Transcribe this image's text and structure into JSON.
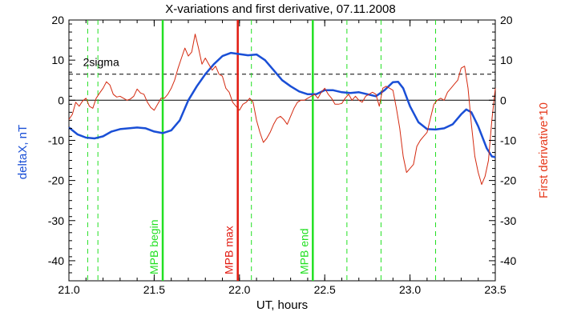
{
  "chart_data": {
    "type": "line",
    "title": "X-variations and first derivative, 07.11.2008",
    "xlabel": "UT, hours",
    "ylabel_left": "deltaX, nT",
    "ylabel_right": "First derivative*10",
    "xlim": [
      21.0,
      23.5
    ],
    "ylim": [
      -45,
      20
    ],
    "x_ticks": [
      21.0,
      21.5,
      22.0,
      22.5,
      23.0,
      23.5
    ],
    "x_tick_labels": [
      "21.0",
      "21.5",
      "22.0",
      "22.5",
      "23.0",
      "23.5"
    ],
    "y_ticks": [
      20,
      10,
      0,
      -10,
      -20,
      -30,
      -40
    ],
    "y_tick_labels": [
      "20",
      "10",
      "0",
      "-10",
      "-20",
      "-30",
      "-40"
    ],
    "colors": {
      "deltaX": "#1a4fd6",
      "derivative": "#d42a10",
      "green_marker": "#22e022",
      "red_marker": "#e21a10",
      "right_label": "#e63b1e",
      "left_label": "#1a4fd6"
    },
    "reference_lines": [
      {
        "y": 6.5,
        "style": "dashed",
        "label": "2sigma"
      },
      {
        "y": 0,
        "style": "solid",
        "label": ""
      }
    ],
    "solid_markers": [
      {
        "x": 21.55,
        "label": "MPB begin",
        "color": "green"
      },
      {
        "x": 21.99,
        "label": "MPB max",
        "color": "red"
      },
      {
        "x": 22.43,
        "label": "MPB end",
        "color": "green"
      }
    ],
    "dashed_markers": [
      21.11,
      21.17,
      22.07,
      22.63,
      22.83,
      23.15
    ],
    "series": [
      {
        "name": "deltaX, nT",
        "color_key": "deltaX",
        "points": [
          [
            21.0,
            -6.8
          ],
          [
            21.05,
            -8.5
          ],
          [
            21.1,
            -9.3
          ],
          [
            21.15,
            -9.5
          ],
          [
            21.2,
            -9.0
          ],
          [
            21.25,
            -7.8
          ],
          [
            21.3,
            -7.2
          ],
          [
            21.35,
            -7.0
          ],
          [
            21.4,
            -6.8
          ],
          [
            21.45,
            -7.0
          ],
          [
            21.5,
            -7.8
          ],
          [
            21.55,
            -8.2
          ],
          [
            21.6,
            -7.5
          ],
          [
            21.65,
            -5.0
          ],
          [
            21.7,
            0.0
          ],
          [
            21.75,
            3.5
          ],
          [
            21.8,
            6.5
          ],
          [
            21.85,
            9.0
          ],
          [
            21.9,
            11.0
          ],
          [
            21.95,
            11.8
          ],
          [
            22.0,
            11.5
          ],
          [
            22.05,
            11.2
          ],
          [
            22.1,
            11.4
          ],
          [
            22.15,
            10.0
          ],
          [
            22.2,
            7.5
          ],
          [
            22.25,
            5.0
          ],
          [
            22.3,
            3.5
          ],
          [
            22.35,
            2.2
          ],
          [
            22.4,
            1.5
          ],
          [
            22.45,
            1.5
          ],
          [
            22.5,
            2.5
          ],
          [
            22.55,
            2.5
          ],
          [
            22.6,
            2.0
          ],
          [
            22.65,
            1.8
          ],
          [
            22.7,
            2.0
          ],
          [
            22.75,
            1.5
          ],
          [
            22.8,
            1.0
          ],
          [
            22.85,
            2.5
          ],
          [
            22.9,
            4.5
          ],
          [
            22.93,
            4.6
          ],
          [
            22.96,
            3.0
          ],
          [
            23.0,
            -1.5
          ],
          [
            23.05,
            -5.5
          ],
          [
            23.1,
            -7.2
          ],
          [
            23.15,
            -7.3
          ],
          [
            23.2,
            -7.0
          ],
          [
            23.25,
            -6.0
          ],
          [
            23.3,
            -3.5
          ],
          [
            23.33,
            -2.3
          ],
          [
            23.36,
            -3.0
          ],
          [
            23.4,
            -6.5
          ],
          [
            23.45,
            -12.0
          ],
          [
            23.48,
            -14.0
          ],
          [
            23.5,
            -14.2
          ]
        ]
      },
      {
        "name": "First derivative*10",
        "color_key": "derivative",
        "points": [
          [
            21.0,
            -4.8
          ],
          [
            21.02,
            -3.5
          ],
          [
            21.04,
            -0.5
          ],
          [
            21.06,
            -1.5
          ],
          [
            21.08,
            -0.2
          ],
          [
            21.1,
            0.5
          ],
          [
            21.12,
            -1.5
          ],
          [
            21.14,
            -2.0
          ],
          [
            21.16,
            0.5
          ],
          [
            21.18,
            1.8
          ],
          [
            21.2,
            3.0
          ],
          [
            21.22,
            4.6
          ],
          [
            21.24,
            3.8
          ],
          [
            21.26,
            1.5
          ],
          [
            21.28,
            0.8
          ],
          [
            21.3,
            1.0
          ],
          [
            21.32,
            0.5
          ],
          [
            21.34,
            0.0
          ],
          [
            21.36,
            0.3
          ],
          [
            21.38,
            1.0
          ],
          [
            21.4,
            2.8
          ],
          [
            21.42,
            1.8
          ],
          [
            21.44,
            1.5
          ],
          [
            21.46,
            -0.5
          ],
          [
            21.48,
            -1.8
          ],
          [
            21.5,
            -2.5
          ],
          [
            21.52,
            -1.0
          ],
          [
            21.54,
            0.5
          ],
          [
            21.56,
            0.5
          ],
          [
            21.58,
            1.5
          ],
          [
            21.6,
            3.0
          ],
          [
            21.62,
            5.0
          ],
          [
            21.64,
            8.0
          ],
          [
            21.66,
            10.5
          ],
          [
            21.68,
            13.0
          ],
          [
            21.7,
            11.0
          ],
          [
            21.72,
            12.0
          ],
          [
            21.74,
            16.5
          ],
          [
            21.76,
            13.0
          ],
          [
            21.78,
            9.0
          ],
          [
            21.8,
            10.5
          ],
          [
            21.82,
            9.0
          ],
          [
            21.84,
            7.5
          ],
          [
            21.86,
            8.5
          ],
          [
            21.88,
            6.5
          ],
          [
            21.9,
            6.0
          ],
          [
            21.92,
            3.0
          ],
          [
            21.94,
            2.0
          ],
          [
            21.96,
            -0.5
          ],
          [
            21.98,
            -1.5
          ],
          [
            22.0,
            -2.5
          ],
          [
            22.02,
            -1.0
          ],
          [
            22.04,
            -0.5
          ],
          [
            22.06,
            0.5
          ],
          [
            22.08,
            -0.5
          ],
          [
            22.1,
            -5.0
          ],
          [
            22.12,
            -8.0
          ],
          [
            22.14,
            -10.5
          ],
          [
            22.16,
            -9.5
          ],
          [
            22.18,
            -8.0
          ],
          [
            22.2,
            -6.0
          ],
          [
            22.22,
            -4.5
          ],
          [
            22.24,
            -4.0
          ],
          [
            22.26,
            -4.8
          ],
          [
            22.28,
            -6.0
          ],
          [
            22.3,
            -4.0
          ],
          [
            22.32,
            -2.0
          ],
          [
            22.34,
            -0.5
          ],
          [
            22.36,
            0.0
          ],
          [
            22.38,
            0.0
          ],
          [
            22.4,
            0.5
          ],
          [
            22.42,
            1.0
          ],
          [
            22.44,
            1.5
          ],
          [
            22.46,
            0.5
          ],
          [
            22.48,
            2.0
          ],
          [
            22.5,
            3.0
          ],
          [
            22.52,
            1.5
          ],
          [
            22.54,
            0.5
          ],
          [
            22.56,
            -1.0
          ],
          [
            22.58,
            -1.0
          ],
          [
            22.6,
            -0.8
          ],
          [
            22.62,
            0.5
          ],
          [
            22.64,
            1.5
          ],
          [
            22.66,
            0.0
          ],
          [
            22.68,
            1.0
          ],
          [
            22.7,
            0.0
          ],
          [
            22.72,
            -0.5
          ],
          [
            22.74,
            1.0
          ],
          [
            22.76,
            1.5
          ],
          [
            22.78,
            2.0
          ],
          [
            22.8,
            1.5
          ],
          [
            22.82,
            -1.5
          ],
          [
            22.84,
            3.0
          ],
          [
            22.86,
            3.5
          ],
          [
            22.88,
            3.0
          ],
          [
            22.9,
            2.5
          ],
          [
            22.92,
            -2.0
          ],
          [
            22.94,
            -7.0
          ],
          [
            22.96,
            -14.0
          ],
          [
            22.98,
            -18.0
          ],
          [
            23.0,
            -17.0
          ],
          [
            23.02,
            -16.0
          ],
          [
            23.04,
            -11.5
          ],
          [
            23.06,
            -10.0
          ],
          [
            23.08,
            -9.0
          ],
          [
            23.1,
            -8.0
          ],
          [
            23.12,
            -4.5
          ],
          [
            23.14,
            -1.0
          ],
          [
            23.16,
            0.0
          ],
          [
            23.18,
            0.5
          ],
          [
            23.2,
            0.0
          ],
          [
            23.22,
            2.0
          ],
          [
            23.24,
            3.0
          ],
          [
            23.26,
            4.0
          ],
          [
            23.28,
            5.0
          ],
          [
            23.3,
            8.0
          ],
          [
            23.32,
            8.5
          ],
          [
            23.34,
            3.0
          ],
          [
            23.36,
            -6.0
          ],
          [
            23.38,
            -14.0
          ],
          [
            23.4,
            -18.0
          ],
          [
            23.42,
            -21.0
          ],
          [
            23.44,
            -19.0
          ],
          [
            23.46,
            -15.0
          ],
          [
            23.48,
            -5.0
          ],
          [
            23.5,
            3.0
          ]
        ]
      }
    ]
  }
}
